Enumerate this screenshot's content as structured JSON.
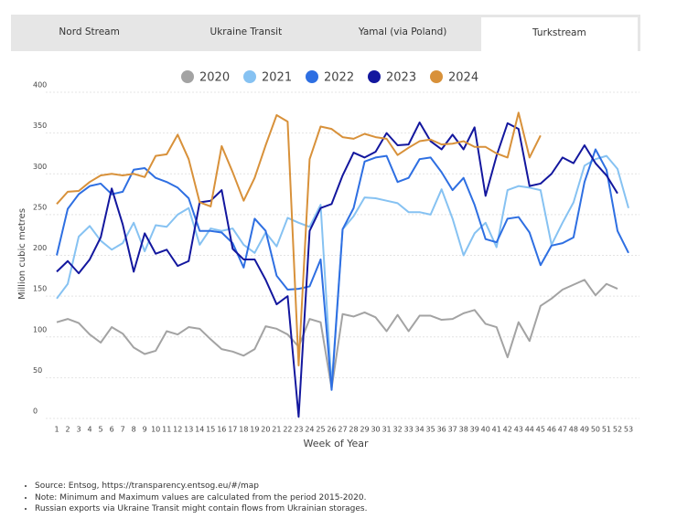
{
  "tabs": [
    "Nord Stream",
    "Ukraine Transit",
    "Yamal (via Poland)",
    "Turkstream"
  ],
  "active_tab": 3,
  "chart_data": {
    "type": "line",
    "xlabel": "Week of Year",
    "ylabel": "Million cubic metres",
    "x": [
      1,
      2,
      3,
      4,
      5,
      6,
      7,
      8,
      9,
      10,
      11,
      12,
      13,
      14,
      15,
      16,
      17,
      18,
      19,
      20,
      21,
      22,
      23,
      24,
      25,
      26,
      27,
      28,
      29,
      30,
      31,
      32,
      33,
      34,
      35,
      36,
      37,
      38,
      39,
      40,
      41,
      42,
      43,
      44,
      45,
      46,
      47,
      48,
      49,
      50,
      51,
      52,
      53
    ],
    "xlim": [
      0,
      54
    ],
    "xticks": [
      1,
      2,
      3,
      4,
      5,
      6,
      7,
      8,
      9,
      10,
      11,
      12,
      13,
      14,
      15,
      16,
      17,
      18,
      19,
      20,
      21,
      22,
      23,
      24,
      25,
      26,
      27,
      28,
      29,
      30,
      31,
      32,
      33,
      34,
      35,
      36,
      37,
      38,
      39,
      40,
      41,
      42,
      43,
      44,
      45,
      46,
      47,
      48,
      49,
      50,
      51,
      52,
      53
    ],
    "ylim": [
      0,
      400
    ],
    "yticks": [
      0,
      50,
      100,
      150,
      200,
      250,
      300,
      350,
      400
    ],
    "grid": true,
    "legend": "top",
    "series": [
      {
        "name": "2020",
        "color": "#a3a3a3",
        "values": [
          118,
          122,
          117,
          103,
          93,
          112,
          104,
          87,
          79,
          83,
          107,
          103,
          112,
          110,
          97,
          85,
          82,
          77,
          85,
          113,
          110,
          103,
          88,
          122,
          118,
          37,
          128,
          125,
          130,
          124,
          107,
          127,
          107,
          126,
          126,
          121,
          122,
          129,
          133,
          116,
          112,
          75,
          118,
          95,
          138,
          147,
          158,
          164,
          170,
          151,
          165,
          159,
          null
        ]
      },
      {
        "name": "2021",
        "color": "#86c2f2",
        "values": [
          147,
          165,
          223,
          236,
          218,
          207,
          215,
          240,
          205,
          237,
          235,
          250,
          258,
          213,
          233,
          230,
          233,
          213,
          203,
          228,
          211,
          246,
          240,
          235,
          262,
          40,
          232,
          248,
          271,
          270,
          267,
          264,
          253,
          253,
          250,
          281,
          245,
          200,
          227,
          240,
          210,
          280,
          285,
          283,
          280,
          213,
          240,
          265,
          310,
          318,
          322,
          306,
          258
        ]
      },
      {
        "name": "2022",
        "color": "#2e6fe2",
        "values": [
          200,
          257,
          275,
          285,
          288,
          275,
          278,
          305,
          307,
          295,
          290,
          283,
          270,
          230,
          230,
          228,
          215,
          185,
          245,
          230,
          175,
          158,
          159,
          162,
          195,
          35,
          232,
          258,
          315,
          320,
          322,
          290,
          295,
          318,
          320,
          302,
          280,
          295,
          262,
          220,
          216,
          245,
          247,
          228,
          188,
          212,
          215,
          222,
          290,
          330,
          305,
          230,
          203
        ]
      },
      {
        "name": "2023",
        "color": "#13179e",
        "values": [
          180,
          193,
          178,
          195,
          222,
          282,
          238,
          180,
          227,
          202,
          207,
          187,
          193,
          265,
          267,
          280,
          208,
          195,
          195,
          170,
          140,
          150,
          2,
          230,
          258,
          263,
          298,
          326,
          320,
          327,
          350,
          335,
          336,
          363,
          340,
          330,
          348,
          330,
          357,
          273,
          322,
          362,
          355,
          285,
          288,
          300,
          320,
          313,
          335,
          313,
          298,
          276,
          null
        ]
      },
      {
        "name": "2024",
        "color": "#d8913a",
        "values": [
          263,
          278,
          279,
          290,
          298,
          300,
          298,
          300,
          296,
          322,
          324,
          348,
          318,
          265,
          260,
          334,
          302,
          267,
          295,
          335,
          372,
          364,
          65,
          318,
          358,
          355,
          345,
          343,
          349,
          345,
          343,
          323,
          332,
          340,
          342,
          336,
          337,
          340,
          333,
          333,
          325,
          320,
          375,
          320,
          347,
          null,
          null,
          null,
          null,
          null,
          null,
          null,
          null
        ]
      }
    ]
  },
  "notes": [
    "Source: Entsog,  https://transparency.entsog.eu/#/map",
    "Note: Minimum and Maximum values are calculated from the period 2015-2020.",
    "Russian exports via Ukraine Transit might contain flows from Ukrainian storages."
  ]
}
